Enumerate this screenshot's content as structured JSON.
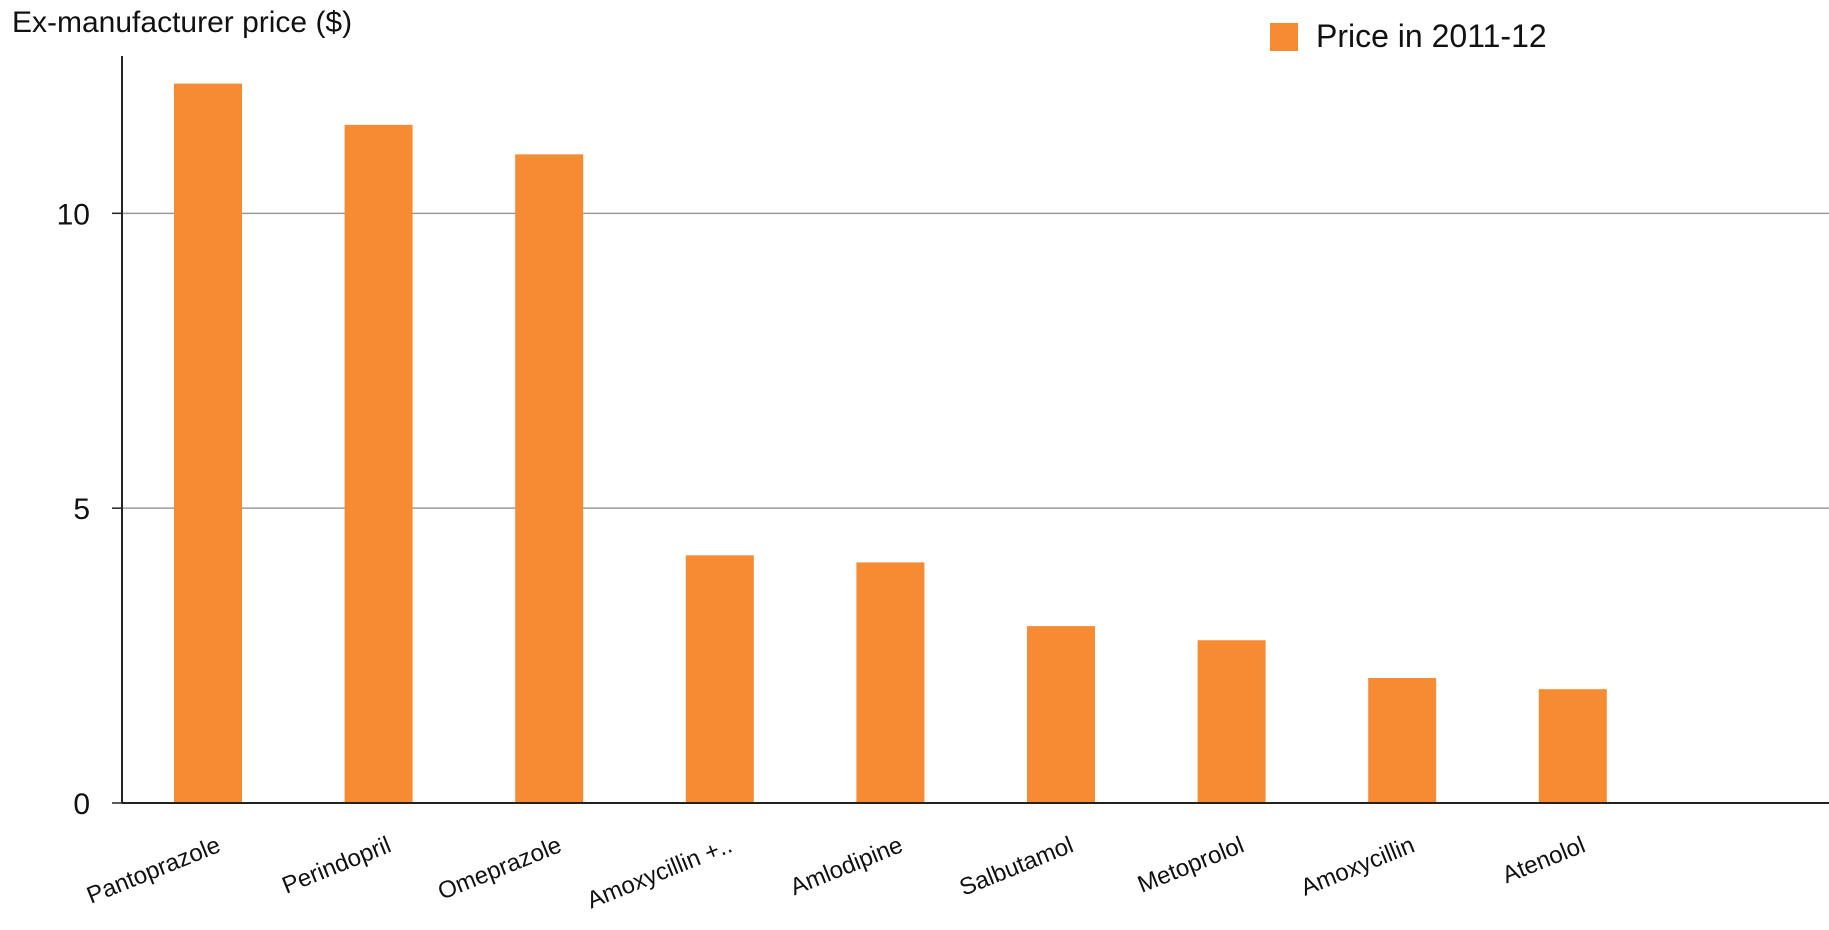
{
  "chart_data": {
    "type": "bar",
    "ylabel": "Ex-manufacturer price ($)",
    "categories": [
      "Pantoprazole",
      "Perindopril",
      "Omeprazole",
      "Amoxycillin +..",
      "Amlodipine",
      "Salbutamol",
      "Metoprolol",
      "Amoxycillin",
      "Atenolol"
    ],
    "series": [
      {
        "name": "Price in 2011-12",
        "values": [
          12.2,
          11.5,
          11.0,
          4.2,
          4.08,
          3.0,
          2.76,
          2.12,
          1.93
        ],
        "color": "#f68b33"
      }
    ],
    "ylim": [
      0,
      12.6
    ],
    "yticks": [
      "0",
      "5",
      "10"
    ],
    "ytick_values": [
      0,
      5,
      10
    ],
    "grid": true,
    "legend_position": "top-right"
  }
}
